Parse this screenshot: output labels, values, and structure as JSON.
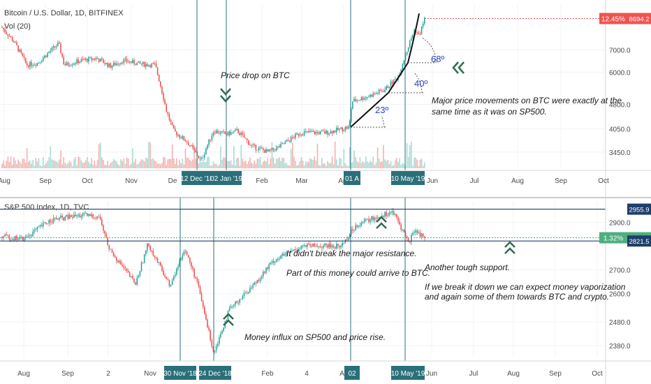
{
  "colors": {
    "up": "#26a69a",
    "down": "#ef5350",
    "vline": "#2a6f7a",
    "hline": "#1f3f6b",
    "trend": "#111111",
    "chevron": "#2f6b4f",
    "price_tag": "#ef5350",
    "sp_tag": "#4caf7f",
    "res_tag": "#1f3f6b",
    "date_tag": "#2a6f7a"
  },
  "chart_data": [
    {
      "type": "candlestick",
      "title": "Bitcoin / U.S. Dollar, 1D, BITFINEX",
      "subtitle": "Vol (20)",
      "x_ticks": [
        "Aug",
        "Sep",
        "Oct",
        "Nov",
        "De",
        "Feb",
        "Mar",
        "Apr",
        "Jun",
        "Jul",
        "Aug",
        "Sep",
        "Oct"
      ],
      "y_ticks": [
        3450,
        4050,
        4800,
        6000,
        7000
      ],
      "y_tick_labels": [
        "3450.0",
        "4050.0",
        "4800.0",
        "6000.0",
        "7000.0"
      ],
      "y_scale": "log",
      "ylim": [
        3100,
        9600
      ],
      "last_price": "8694.2",
      "last_change": "12.45%",
      "date_tags": [
        "12 Dec '18",
        "02 Jan '19",
        "01 A",
        "10 May '19"
      ],
      "path": [
        [
          "2018-07-25",
          8200
        ],
        [
          "2018-08-03",
          7400
        ],
        [
          "2018-08-12",
          6300
        ],
        [
          "2018-08-20",
          6400
        ],
        [
          "2018-09-04",
          7300
        ],
        [
          "2018-09-08",
          6300
        ],
        [
          "2018-09-20",
          6500
        ],
        [
          "2018-10-01",
          6600
        ],
        [
          "2018-10-11",
          6250
        ],
        [
          "2018-10-20",
          6500
        ],
        [
          "2018-11-01",
          6350
        ],
        [
          "2018-11-12",
          6300
        ],
        [
          "2018-11-20",
          4600
        ],
        [
          "2018-11-25",
          4000
        ],
        [
          "2018-12-05",
          3700
        ],
        [
          "2018-12-15",
          3250
        ],
        [
          "2018-12-24",
          4000
        ],
        [
          "2019-01-02",
          3900
        ],
        [
          "2019-01-10",
          4000
        ],
        [
          "2019-01-20",
          3600
        ],
        [
          "2019-02-01",
          3450
        ],
        [
          "2019-02-10",
          3600
        ],
        [
          "2019-02-24",
          3950
        ],
        [
          "2019-03-15",
          3950
        ],
        [
          "2019-03-31",
          4100
        ],
        [
          "2019-04-02",
          4900
        ],
        [
          "2019-04-15",
          5100
        ],
        [
          "2019-04-25",
          5300
        ],
        [
          "2019-05-05",
          5800
        ],
        [
          "2019-05-12",
          7100
        ],
        [
          "2019-05-17",
          8100
        ],
        [
          "2019-05-20",
          7700
        ],
        [
          "2019-05-24",
          8694
        ]
      ]
    },
    {
      "type": "candlestick",
      "title": "S&P 500 Index, 1D, TVC",
      "x_ticks": [
        "Aug",
        "Sep",
        "2",
        "Nov",
        "Feb",
        "4",
        "Apr",
        "Jun",
        "Jul",
        "Aug",
        "Sep",
        "Oct"
      ],
      "y_ticks": [
        2380,
        2480,
        2600,
        2700,
        2900
      ],
      "y_tick_labels": [
        "2380.0",
        "2480.0",
        "2600.0",
        "2700.0",
        "2900.0"
      ],
      "ylim": [
        2330,
        2990
      ],
      "last_price": "2835.2",
      "last_change": "1.32%",
      "resistance_levels": [
        "2955.9",
        "2821.5"
      ],
      "date_tags": [
        "30 Nov '18",
        "24 Dec '18",
        "02",
        "10 May '19"
      ],
      "path": [
        [
          "2018-07-25",
          2840
        ],
        [
          "2018-08-10",
          2830
        ],
        [
          "2018-08-29",
          2910
        ],
        [
          "2018-09-20",
          2930
        ],
        [
          "2018-10-03",
          2925
        ],
        [
          "2018-10-10",
          2790
        ],
        [
          "2018-10-29",
          2640
        ],
        [
          "2018-11-07",
          2810
        ],
        [
          "2018-11-23",
          2630
        ],
        [
          "2018-12-03",
          2790
        ],
        [
          "2018-12-12",
          2650
        ],
        [
          "2018-12-24",
          2350
        ],
        [
          "2019-01-04",
          2530
        ],
        [
          "2019-01-22",
          2640
        ],
        [
          "2019-02-05",
          2740
        ],
        [
          "2019-02-25",
          2800
        ],
        [
          "2019-03-25",
          2800
        ],
        [
          "2019-04-05",
          2890
        ],
        [
          "2019-04-23",
          2930
        ],
        [
          "2019-05-01",
          2945
        ],
        [
          "2019-05-07",
          2880
        ],
        [
          "2019-05-13",
          2810
        ],
        [
          "2019-05-16",
          2870
        ],
        [
          "2019-05-24",
          2835
        ]
      ]
    }
  ],
  "annotations": {
    "btc_drop": "Price drop on BTC",
    "angle_23": "23º",
    "angle_40": "40º",
    "angle_68": "68º",
    "btc_major_1": "Major price movements on BTC were exactly at the",
    "btc_major_2": "same time as it was on SP500.",
    "sp_resist": "It didn't break the major resistance.",
    "sp_money": "Part of this money could arrive to BTC.",
    "sp_support": "Another tough support.",
    "sp_break_1": "If we break it down we can expect money vaporization",
    "sp_break_2": "and again some of them towards BTC and crypto.",
    "sp_influx": "Money influx on SP500 and price rise."
  },
  "icons": [
    "chevron-down-icon",
    "chevron-left-icon",
    "chevron-up-icon"
  ]
}
